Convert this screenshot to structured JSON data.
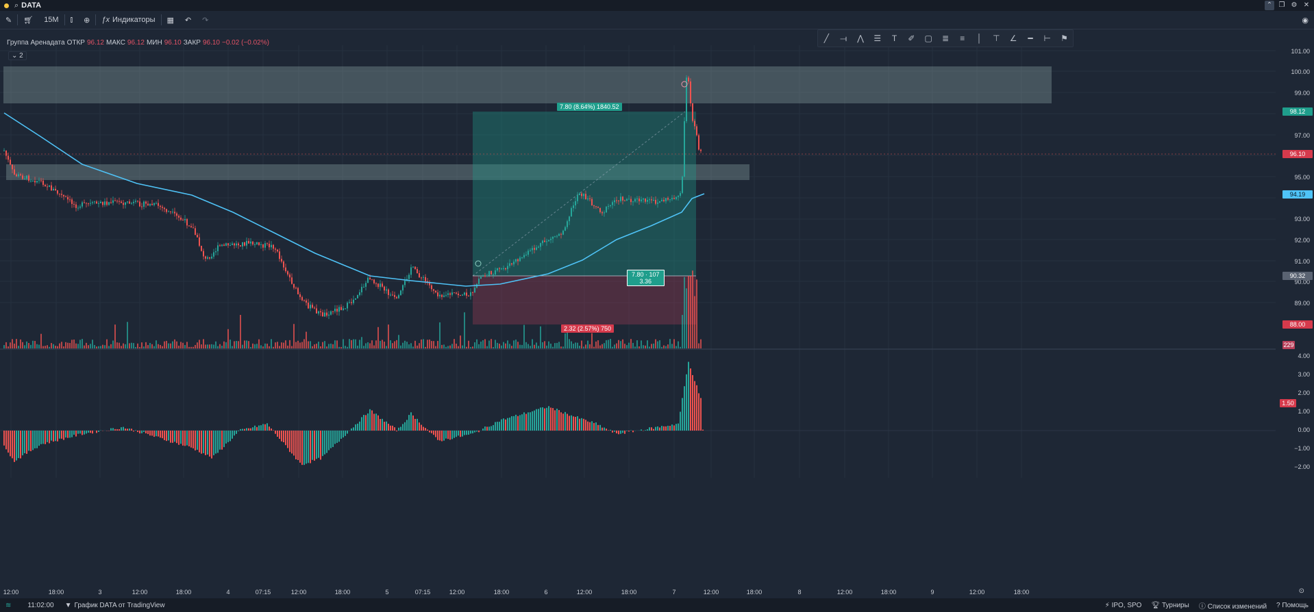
{
  "titlebar": {
    "symbol": "DATA",
    "search_icon": "search-icon"
  },
  "toolbar": {
    "interval": "15M",
    "indicators_label": "Индикаторы"
  },
  "legend": {
    "name": "Группа Аренадата",
    "open_label": "ОТКР",
    "open": "96.12",
    "high_label": "МАКС",
    "high": "96.12",
    "low_label": "МИН",
    "low": "96.10",
    "close_label": "ЗАКР",
    "close": "96.10",
    "change": "−0.02 (−0.02%)",
    "badge": "2"
  },
  "price_scale": {
    "labels": [
      "101.00",
      "100.00",
      "99.00",
      "97.00",
      "95.00",
      "93.00",
      "92.00",
      "91.00",
      "90.00",
      "89.00"
    ],
    "tags": {
      "target": "98.12",
      "current": "96.10",
      "ma": "94.19",
      "entry": "90.32",
      "stop": "88.00",
      "volume": "229"
    }
  },
  "osc_scale": {
    "labels": [
      "4.00",
      "3.00",
      "2.00",
      "1.00",
      "0.00",
      "−1.00",
      "−2.00"
    ],
    "tag": "1.50"
  },
  "time_scale": {
    "labels": [
      "12:00",
      "18:00",
      "3",
      "12:00",
      "18:00",
      "4",
      "07:15",
      "12:00",
      "18:00",
      "5",
      "07:15",
      "12:00",
      "18:00",
      "6",
      "12:00",
      "18:00",
      "7",
      "12:00",
      "18:00",
      "8",
      "12:00",
      "18:00",
      "9",
      "12:00",
      "18:00"
    ]
  },
  "position": {
    "profit_label": "7.80 (8.64%) 1840.52",
    "center_line1": "7.80 · 107",
    "center_line2": "3.36",
    "loss_label": "2.32 (2.57%) 750"
  },
  "statusbar": {
    "time": "11:02:00",
    "brand": "График DATA от TradingView",
    "ipo": "IPO, SPO",
    "tournaments": "Турниры",
    "changes": "Список изменений",
    "help": "Помощь"
  },
  "colors": {
    "up": "#26a69a",
    "down": "#ef5350",
    "ma": "#4fc3f7",
    "bg": "#1e2735"
  }
}
